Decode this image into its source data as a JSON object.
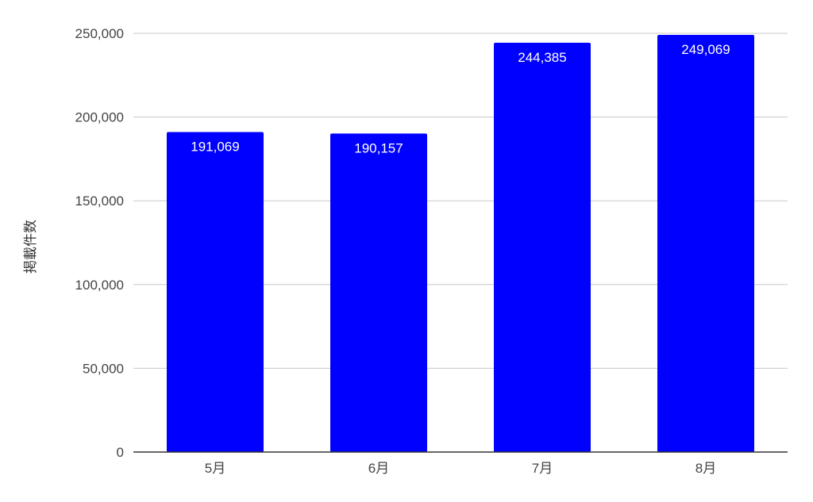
{
  "chart_data": {
    "type": "bar",
    "categories": [
      "5月",
      "6月",
      "7月",
      "8月"
    ],
    "values": [
      191069,
      190157,
      244385,
      249069
    ],
    "data_labels": [
      "191,069",
      "190,157",
      "244,385",
      "249,069"
    ],
    "title": "",
    "xlabel": "",
    "ylabel": "掲載件数",
    "ylim": [
      0,
      250000
    ],
    "yticks": [
      0,
      50000,
      100000,
      150000,
      200000,
      250000
    ],
    "ytick_labels": [
      "0",
      "50,000",
      "100,000",
      "150,000",
      "200,000",
      "250,000"
    ],
    "grid": true,
    "legend": "none",
    "colors": {
      "bar": "#0000ff",
      "grid": "#c8c8c8",
      "axis": "#333333",
      "label": "#ffffff"
    }
  }
}
